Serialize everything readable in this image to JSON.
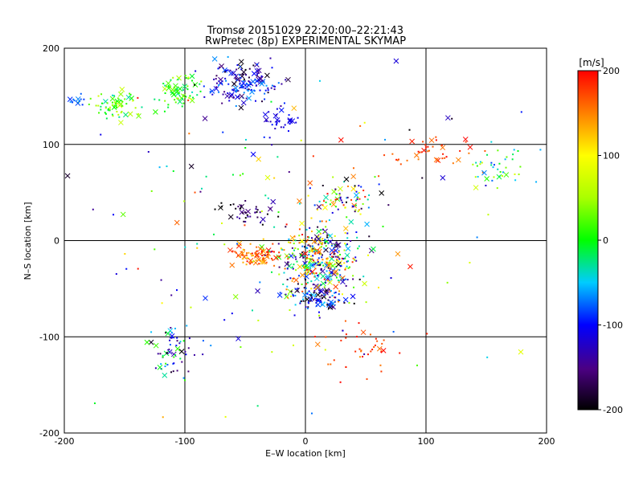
{
  "chart_data": {
    "type": "scatter",
    "title": "Tromsø 20151029 22:20:00–22:21:43",
    "subtitle": "RwPretec (8p) EXPERIMENTAL SKYMAP",
    "xlabel": "E–W location [km]",
    "ylabel": "N–S location [km]",
    "xlim": [
      -200,
      200
    ],
    "ylim": [
      -200,
      200
    ],
    "x_ticks": [
      -200,
      -100,
      0,
      100,
      200
    ],
    "y_ticks": [
      -200,
      -100,
      0,
      100,
      200
    ],
    "grid_lines": [
      -100,
      0,
      100
    ],
    "grid": true,
    "colorbar": {
      "label": "[m/s]",
      "range": [
        -200,
        200
      ],
      "ticks": [
        200,
        100,
        0,
        -100,
        -200
      ]
    },
    "marker_types": [
      "dot",
      "cross"
    ],
    "point_clusters": [
      {
        "center": [
          -160,
          140
        ],
        "spread": [
          22,
          14
        ],
        "n": 70,
        "vel": [
          -40,
          80
        ]
      },
      {
        "center": [
          -105,
          155
        ],
        "spread": [
          18,
          16
        ],
        "n": 70,
        "vel": [
          -40,
          60
        ]
      },
      {
        "center": [
          -50,
          165
        ],
        "spread": [
          28,
          22
        ],
        "n": 160,
        "vel": [
          -200,
          -60
        ]
      },
      {
        "center": [
          -20,
          125
        ],
        "spread": [
          14,
          14
        ],
        "n": 30,
        "vel": [
          -140,
          -90
        ]
      },
      {
        "center": [
          -190,
          145
        ],
        "spread": [
          6,
          6
        ],
        "n": 12,
        "vel": [
          -90,
          -60
        ]
      },
      {
        "center": [
          10,
          -20
        ],
        "spread": [
          30,
          32
        ],
        "n": 380,
        "vel": [
          -200,
          200
        ]
      },
      {
        "center": [
          -40,
          -15
        ],
        "spread": [
          20,
          12
        ],
        "n": 80,
        "vel": [
          120,
          200
        ]
      },
      {
        "center": [
          10,
          -60
        ],
        "spread": [
          20,
          12
        ],
        "n": 90,
        "vel": [
          -220,
          -40
        ]
      },
      {
        "center": [
          30,
          45
        ],
        "spread": [
          25,
          18
        ],
        "n": 70,
        "vel": [
          -200,
          200
        ]
      },
      {
        "center": [
          -50,
          30
        ],
        "spread": [
          25,
          10
        ],
        "n": 40,
        "vel": [
          -220,
          -150
        ]
      },
      {
        "center": [
          110,
          90
        ],
        "spread": [
          35,
          15
        ],
        "n": 40,
        "vel": [
          150,
          200
        ]
      },
      {
        "center": [
          160,
          75
        ],
        "spread": [
          20,
          18
        ],
        "n": 40,
        "vel": [
          -90,
          80
        ]
      },
      {
        "center": [
          -110,
          -115
        ],
        "spread": [
          15,
          25
        ],
        "n": 60,
        "vel": [
          -200,
          20
        ]
      },
      {
        "center": [
          50,
          -110
        ],
        "spread": [
          35,
          30
        ],
        "n": 40,
        "vel": [
          150,
          200
        ]
      },
      {
        "center": [
          0,
          0
        ],
        "spread": [
          160,
          160
        ],
        "n": 170,
        "vel": [
          -200,
          200
        ]
      }
    ]
  }
}
